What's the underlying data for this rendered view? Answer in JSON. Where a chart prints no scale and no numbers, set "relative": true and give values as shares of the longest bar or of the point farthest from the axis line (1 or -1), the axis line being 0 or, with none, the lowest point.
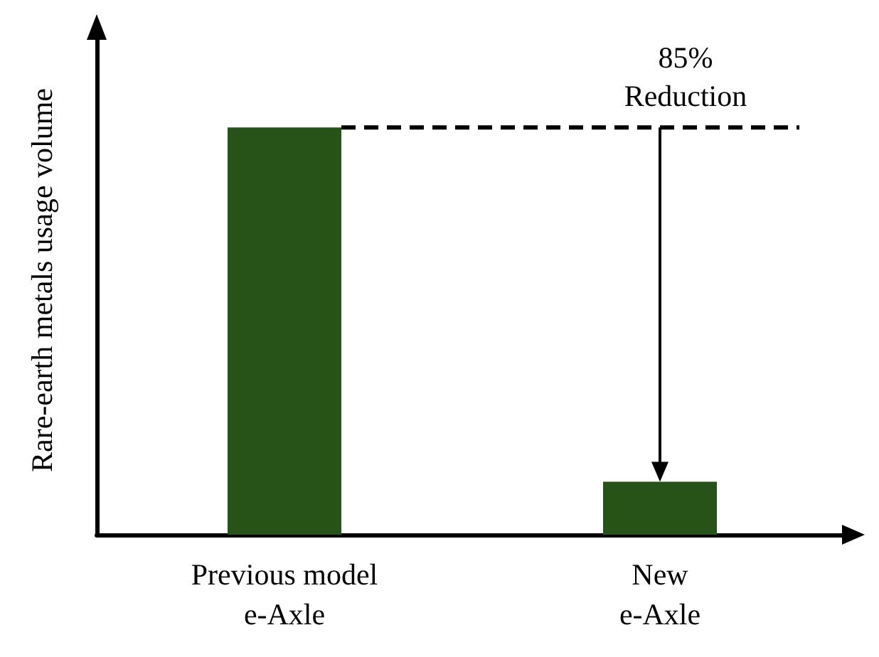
{
  "chart_data": {
    "type": "bar",
    "relative": true,
    "ylabel": "Rare-earth metals usage volume",
    "categories": [
      "Previous model\ne-Axle",
      "New\ne-Axle"
    ],
    "values": [
      1,
      0.13
    ],
    "color": "#275318",
    "grid": false,
    "annotations": [
      "85%\nReduction"
    ],
    "ref_lines": [
      {
        "axis": "y",
        "value": 1,
        "line_style": "dashed",
        "color": "#000000"
      }
    ]
  }
}
